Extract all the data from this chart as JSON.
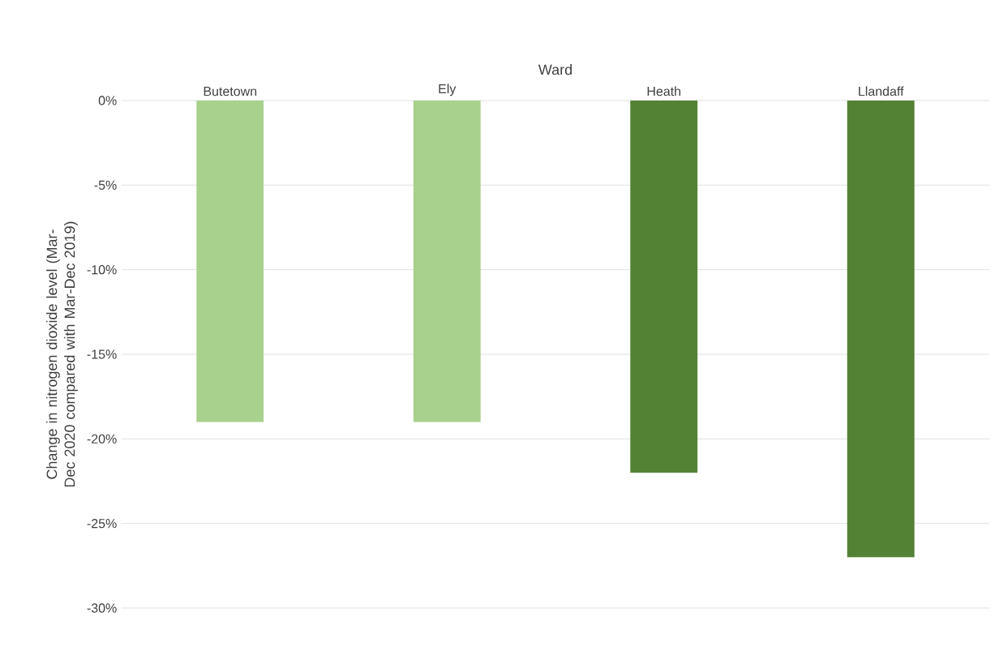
{
  "chart_data": {
    "type": "bar",
    "xlabel": "Ward",
    "ylabel": "Change in nitrogen dioxide level (Mar-Dec 2020 compared with Mar-Dec 2019)",
    "categories": [
      "Butetown",
      "Ely",
      "Heath",
      "Llandaff"
    ],
    "values": [
      -19,
      -19,
      -22,
      -27
    ],
    "colors": [
      "#a9d18e",
      "#a9d18e",
      "#548235",
      "#548235"
    ],
    "ylim": [
      -30,
      0
    ],
    "yticks": [
      {
        "value": 0,
        "label": "0%"
      },
      {
        "value": -5,
        "label": "-5%"
      },
      {
        "value": -10,
        "label": "-10%"
      },
      {
        "value": -15,
        "label": "-15%"
      },
      {
        "value": -20,
        "label": "-20%"
      },
      {
        "value": -25,
        "label": "-25%"
      },
      {
        "value": -30,
        "label": "-30%"
      }
    ],
    "grid": "y"
  }
}
